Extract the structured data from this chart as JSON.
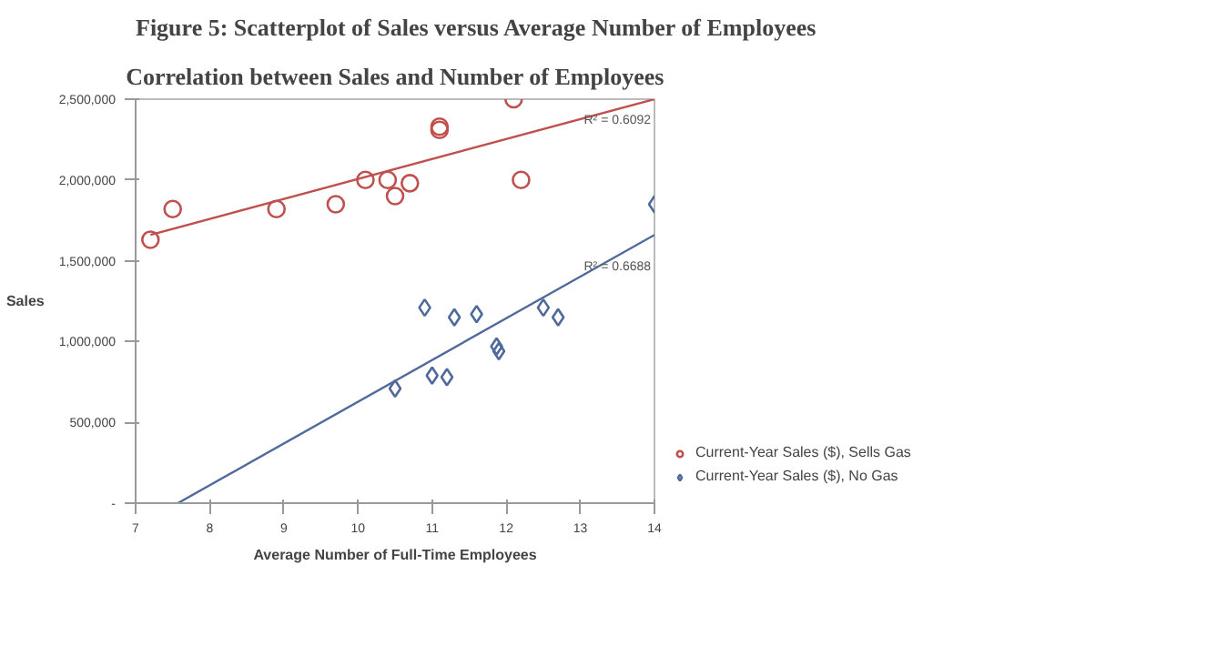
{
  "chart_data": {
    "type": "scatter",
    "title": "Figure 5: Scatterplot of Sales versus Average Number of Employees",
    "subtitle": "Correlation between Sales and Number of Employees",
    "xlabel": "Average Number of Full-Time Employees",
    "ylabel": "Sales",
    "xlim": [
      7,
      14
    ],
    "xticks": [
      7,
      8,
      9,
      10,
      11,
      12,
      13,
      14
    ],
    "ylim": [
      0,
      2500000
    ],
    "yticks": [
      {
        "value": 0,
        "label": "-"
      },
      {
        "value": 500000,
        "label": "500,000"
      },
      {
        "value": 1000000,
        "label": "1,000,000"
      },
      {
        "value": 1500000,
        "label": "1,500,000"
      },
      {
        "value": 2000000,
        "label": "2,000,000"
      },
      {
        "value": 2500000,
        "label": "2,500,000"
      }
    ],
    "series": [
      {
        "name": "Current-Year Sales ($), Sells Gas",
        "color": "#c0504d",
        "marker": "circle",
        "x": [
          7.2,
          7.5,
          8.9,
          9.7,
          10.1,
          10.4,
          10.5,
          10.7,
          11.1,
          11.1,
          12.1,
          12.2
        ],
        "values": [
          1630000,
          1820000,
          1820000,
          1850000,
          2000000,
          2000000,
          1900000,
          1980000,
          2330000,
          2310000,
          2500000,
          2000000
        ]
      },
      {
        "name": "Current-Year Sales ($), No Gas",
        "color": "#4f6a9a",
        "marker": "diamond",
        "x": [
          10.9,
          10.5,
          11.0,
          11.2,
          11.3,
          11.6,
          11.87,
          11.9,
          12.5,
          12.7,
          14.0
        ],
        "values": [
          1210000,
          710000,
          790000,
          780000,
          1150000,
          1170000,
          970000,
          940000,
          1210000,
          1150000,
          1850000
        ]
      },
      {
        "type": "line",
        "color": "#c0504d",
        "x": [
          7.2,
          14.0
        ],
        "values": [
          1660000,
          2500000
        ]
      },
      {
        "type": "line",
        "color": "#4f6a9a",
        "x": [
          7.57,
          14.0
        ],
        "values": [
          0,
          1660000
        ]
      }
    ],
    "annotations": [
      {
        "text": "R² = 0.6092",
        "x": 13.5,
        "y": 2440000
      },
      {
        "text": "R² = 0.6688",
        "x": 13.5,
        "y": 1530000
      }
    ],
    "legend": "right",
    "grid": false
  }
}
